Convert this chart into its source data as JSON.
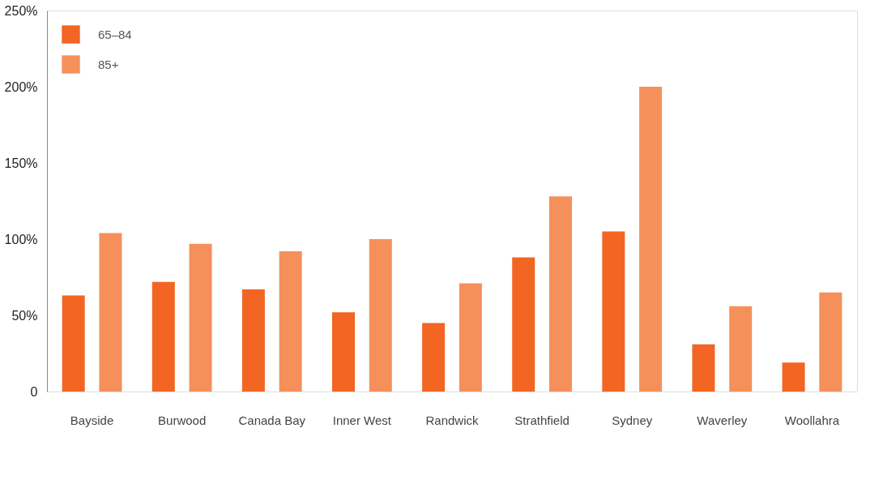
{
  "chart_data": {
    "type": "bar",
    "categories": [
      "Bayside",
      "Burwood",
      "Canada Bay",
      "Inner West",
      "Randwick",
      "Strathfield",
      "Sydney",
      "Waverley",
      "Woollahra"
    ],
    "series": [
      {
        "name": "65–84",
        "color": "#f26522",
        "values": [
          63,
          72,
          67,
          52,
          45,
          88,
          105,
          31,
          19
        ]
      },
      {
        "name": "85+",
        "color": "#f5905a",
        "values": [
          104,
          97,
          92,
          100,
          71,
          128,
          200,
          56,
          65
        ]
      }
    ],
    "ylim": [
      0,
      250
    ],
    "yticks": [
      {
        "value": 0,
        "label": "0"
      },
      {
        "value": 50,
        "label": "50%"
      },
      {
        "value": 100,
        "label": "100%"
      },
      {
        "value": 150,
        "label": "150%"
      },
      {
        "value": 200,
        "label": "200%"
      },
      {
        "value": 250,
        "label": "250%"
      }
    ],
    "grid": false,
    "legend": "top left"
  }
}
